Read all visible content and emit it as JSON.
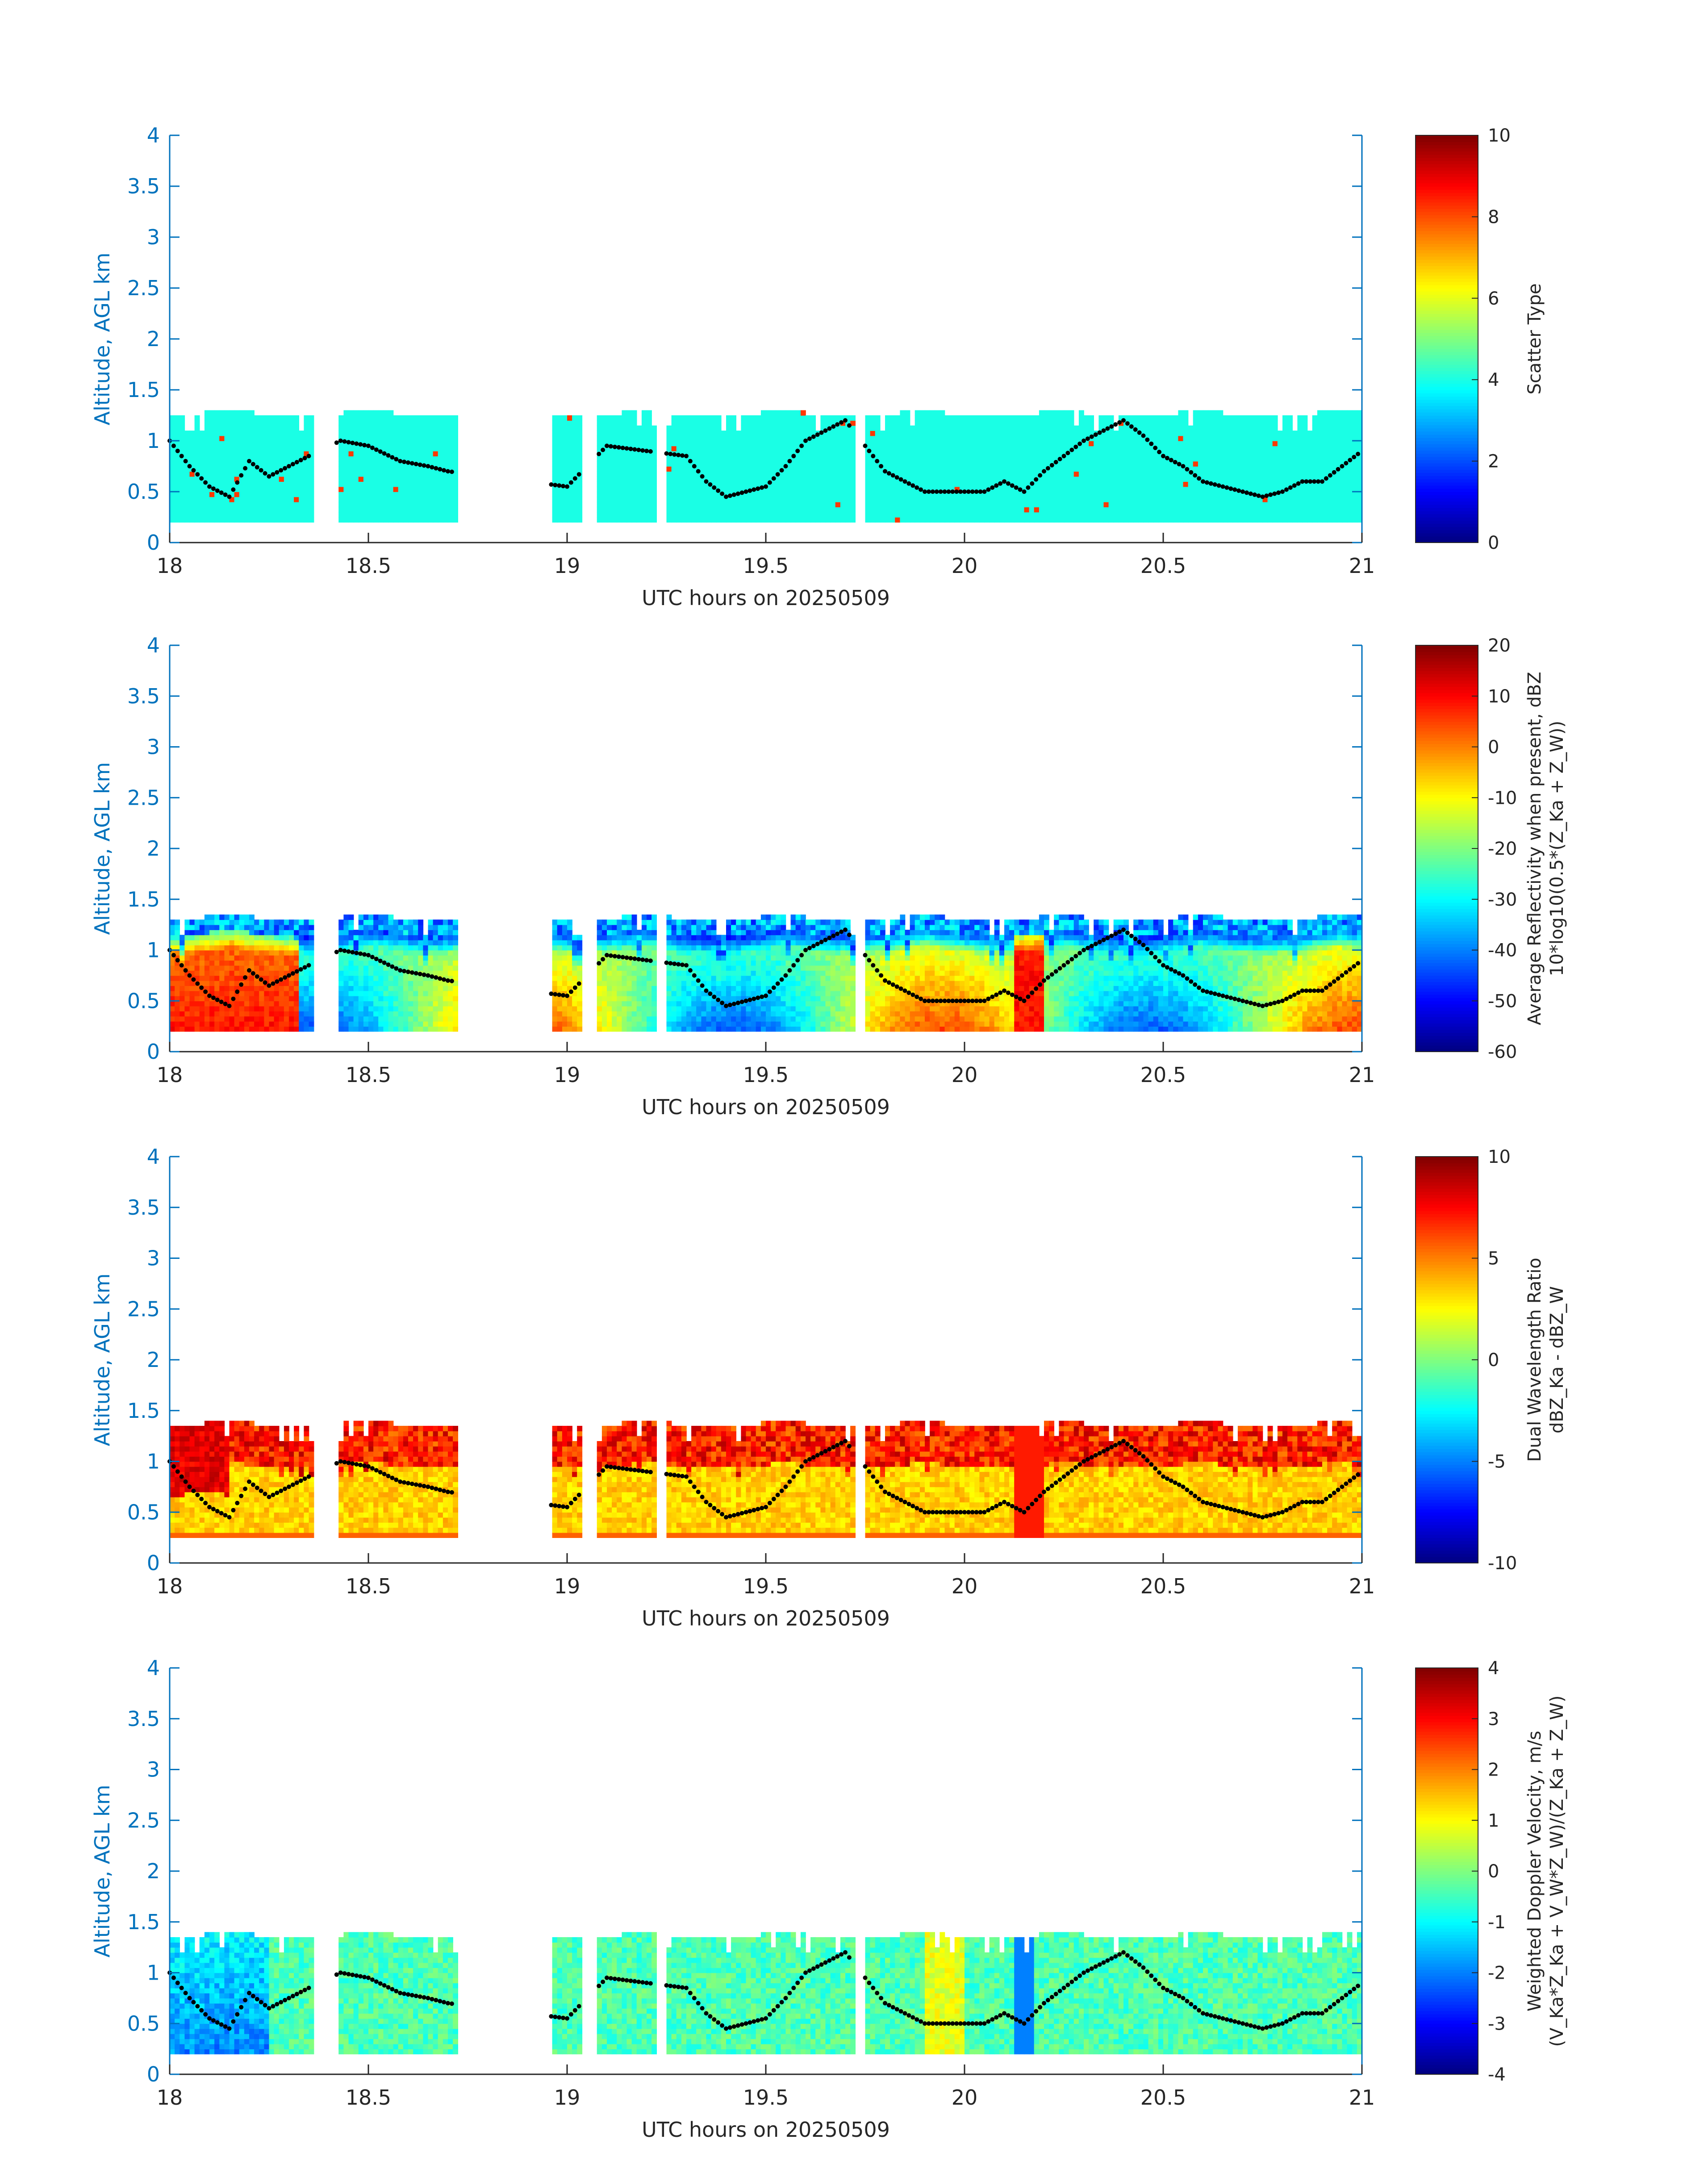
{
  "figure": {
    "x_label": "UTC hours on 20250509",
    "y_label": "Altitude, AGL km"
  },
  "chart_data": [
    {
      "type": "heatmap",
      "xlabel": "UTC hours on 20250509",
      "ylabel": "Altitude, AGL km",
      "xlim": [
        18,
        21
      ],
      "ylim": [
        0,
        4
      ],
      "x_ticks": [
        "18",
        "18.5",
        "19",
        "19.5",
        "20",
        "20.5",
        "21"
      ],
      "y_ticks": [
        "0",
        "0.5",
        "1",
        "1.5",
        "2",
        "2.5",
        "3",
        "3.5",
        "4"
      ],
      "colorbar": {
        "label_lines": [
          "Scatter Type"
        ],
        "range": [
          0,
          10
        ],
        "ticks": [
          "0",
          "2",
          "4",
          "6",
          "8",
          "10"
        ]
      },
      "field": "scatter",
      "cloud_base_km": 0.2,
      "cloud_top_km": 1.3
    },
    {
      "type": "heatmap",
      "xlabel": "UTC hours on 20250509",
      "ylabel": "Altitude, AGL km",
      "xlim": [
        18,
        21
      ],
      "ylim": [
        0,
        4
      ],
      "x_ticks": [
        "18",
        "18.5",
        "19",
        "19.5",
        "20",
        "20.5",
        "21"
      ],
      "y_ticks": [
        "0",
        "0.5",
        "1",
        "1.5",
        "2",
        "2.5",
        "3",
        "3.5",
        "4"
      ],
      "colorbar": {
        "label_lines": [
          "Average Reflectivity when present, dBZ",
          "10*log10(0.5*(Z_Ka + Z_W))"
        ],
        "range": [
          -60,
          20
        ],
        "ticks": [
          "-60",
          "-50",
          "-40",
          "-30",
          "-20",
          "-10",
          "0",
          "10",
          "20"
        ]
      },
      "field": "reflectivity",
      "cloud_base_km": 0.2,
      "cloud_top_km": 1.35
    },
    {
      "type": "heatmap",
      "xlabel": "UTC hours on 20250509",
      "ylabel": "Altitude, AGL km",
      "xlim": [
        18,
        21
      ],
      "ylim": [
        0,
        4
      ],
      "x_ticks": [
        "18",
        "18.5",
        "19",
        "19.5",
        "20",
        "20.5",
        "21"
      ],
      "y_ticks": [
        "0",
        "0.5",
        "1",
        "1.5",
        "2",
        "2.5",
        "3",
        "3.5",
        "4"
      ],
      "colorbar": {
        "label_lines": [
          "Dual Wavelength Ratio",
          "dBZ_Ka - dBZ_W"
        ],
        "range": [
          -10,
          10
        ],
        "ticks": [
          "-10",
          "-5",
          "0",
          "5",
          "10"
        ]
      },
      "field": "dwr",
      "cloud_base_km": 0.25,
      "cloud_top_km": 1.4
    },
    {
      "type": "heatmap",
      "xlabel": "UTC hours on 20250509",
      "ylabel": "Altitude, AGL km",
      "xlim": [
        18,
        21
      ],
      "ylim": [
        0,
        4
      ],
      "x_ticks": [
        "18",
        "18.5",
        "19",
        "19.5",
        "20",
        "20.5",
        "21"
      ],
      "y_ticks": [
        "0",
        "0.5",
        "1",
        "1.5",
        "2",
        "2.5",
        "3",
        "3.5",
        "4"
      ],
      "colorbar": {
        "label_lines": [
          "Weighted Doppler Velocity, m/s",
          "(V_Ka*Z_Ka + V_W*Z_W)/(Z_Ka + Z_W)"
        ],
        "range": [
          -4,
          4
        ],
        "ticks": [
          "-4",
          "-3",
          "-2",
          "-1",
          "0",
          "1",
          "2",
          "3",
          "4"
        ]
      },
      "field": "velocity",
      "cloud_base_km": 0.2,
      "cloud_top_km": 1.4
    }
  ],
  "cloud_segments_hours": [
    [
      18.0,
      18.36
    ],
    [
      18.42,
      18.55
    ],
    [
      18.55,
      18.72
    ],
    [
      18.96,
      19.04
    ],
    [
      19.08,
      19.22
    ],
    [
      19.25,
      19.72
    ],
    [
      19.75,
      21.0
    ]
  ],
  "cloud_base_line": {
    "x": [
      18.0,
      18.05,
      18.1,
      18.15,
      18.2,
      18.25,
      18.3,
      18.35,
      18.43,
      18.5,
      18.58,
      18.65,
      18.7,
      19.0,
      19.1,
      19.2,
      19.3,
      19.35,
      19.4,
      19.45,
      19.5,
      19.55,
      19.6,
      19.65,
      19.7,
      19.8,
      19.85,
      19.9,
      19.95,
      20.0,
      20.05,
      20.1,
      20.15,
      20.2,
      20.25,
      20.3,
      20.35,
      20.4,
      20.45,
      20.5,
      20.55,
      20.6,
      20.65,
      20.7,
      20.75,
      20.8,
      20.85,
      20.9,
      20.95,
      21.0
    ],
    "y": [
      1.0,
      0.75,
      0.55,
      0.45,
      0.8,
      0.65,
      0.75,
      0.85,
      1.0,
      0.95,
      0.8,
      0.75,
      0.7,
      0.55,
      0.95,
      0.9,
      0.85,
      0.6,
      0.45,
      0.5,
      0.55,
      0.75,
      1.0,
      1.1,
      1.2,
      0.7,
      0.6,
      0.5,
      0.5,
      0.5,
      0.5,
      0.6,
      0.5,
      0.7,
      0.85,
      1.0,
      1.1,
      1.2,
      1.05,
      0.85,
      0.75,
      0.6,
      0.55,
      0.5,
      0.45,
      0.5,
      0.6,
      0.6,
      0.75,
      0.9
    ]
  }
}
